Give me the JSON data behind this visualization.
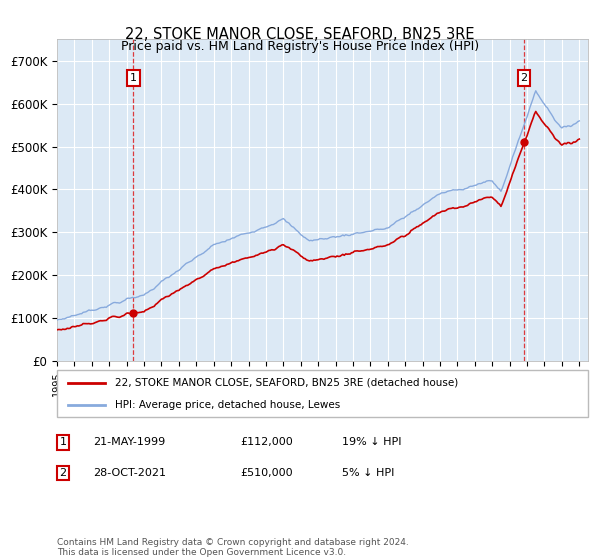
{
  "title": "22, STOKE MANOR CLOSE, SEAFORD, BN25 3RE",
  "subtitle": "Price paid vs. HM Land Registry's House Price Index (HPI)",
  "ylabel_ticks": [
    "£0",
    "£100K",
    "£200K",
    "£300K",
    "£400K",
    "£500K",
    "£600K",
    "£700K"
  ],
  "ytick_values": [
    0,
    100000,
    200000,
    300000,
    400000,
    500000,
    600000,
    700000
  ],
  "ylim": [
    0,
    750000
  ],
  "xlim_start": 1995.0,
  "xlim_end": 2025.5,
  "background_color": "#dce9f5",
  "plot_bg_color": "#dce9f5",
  "grid_color": "#ffffff",
  "legend_label_red": "22, STOKE MANOR CLOSE, SEAFORD, BN25 3RE (detached house)",
  "legend_label_blue": "HPI: Average price, detached house, Lewes",
  "transaction1_date": "21-MAY-1999",
  "transaction1_price": "£112,000",
  "transaction1_hpi": "19% ↓ HPI",
  "transaction1_year": 1999.38,
  "transaction1_value": 112000,
  "transaction2_date": "28-OCT-2021",
  "transaction2_price": "£510,000",
  "transaction2_hpi": "5% ↓ HPI",
  "transaction2_year": 2021.83,
  "transaction2_value": 510000,
  "red_line_color": "#cc0000",
  "blue_line_color": "#88aadd",
  "footnote": "Contains HM Land Registry data © Crown copyright and database right 2024.\nThis data is licensed under the Open Government Licence v3.0."
}
